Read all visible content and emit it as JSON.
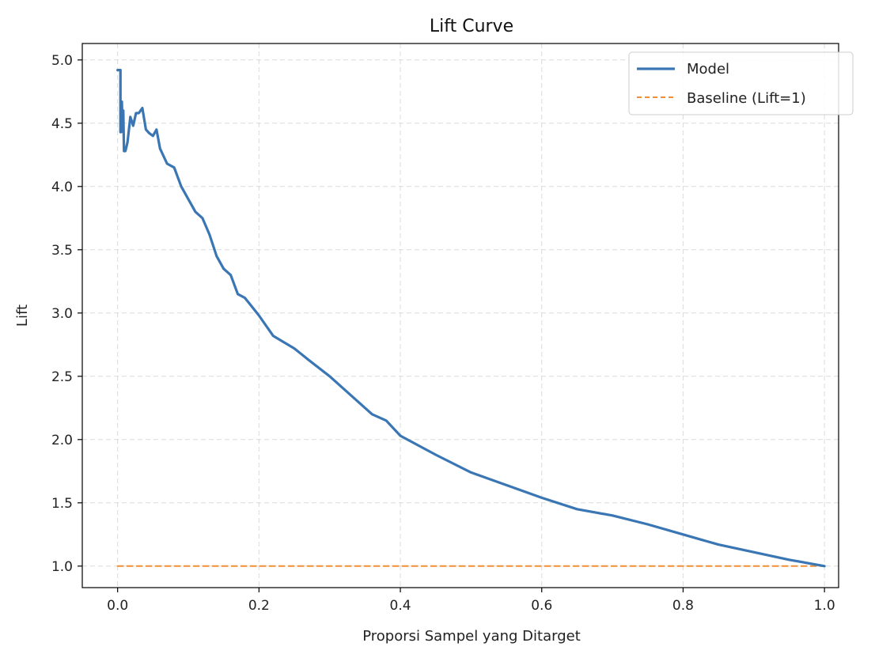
{
  "chart_data": {
    "type": "line",
    "title": "Lift Curve",
    "xlabel": "Proporsi Sampel yang Ditarget",
    "ylabel": "Lift",
    "xlim": [
      -0.05,
      1.02
    ],
    "ylim": [
      0.83,
      5.13
    ],
    "xticks": [
      0.0,
      0.2,
      0.4,
      0.6,
      0.8,
      1.0
    ],
    "xtick_labels": [
      "0.0",
      "0.2",
      "0.4",
      "0.6",
      "0.8",
      "1.0"
    ],
    "yticks": [
      1.0,
      1.5,
      2.0,
      2.5,
      3.0,
      3.5,
      4.0,
      4.5,
      5.0
    ],
    "ytick_labels": [
      "1.0",
      "1.5",
      "2.0",
      "2.5",
      "3.0",
      "3.5",
      "4.0",
      "4.5",
      "5.0"
    ],
    "grid": true,
    "legend_position": "top-right",
    "series": [
      {
        "name": "Model",
        "color": "#3a76b3",
        "style": "solid",
        "x": [
          0.0,
          0.004,
          0.004,
          0.005,
          0.006,
          0.007,
          0.008,
          0.009,
          0.011,
          0.014,
          0.018,
          0.022,
          0.026,
          0.03,
          0.035,
          0.04,
          0.045,
          0.05,
          0.055,
          0.06,
          0.07,
          0.08,
          0.09,
          0.1,
          0.11,
          0.12,
          0.13,
          0.14,
          0.15,
          0.16,
          0.17,
          0.18,
          0.19,
          0.2,
          0.22,
          0.25,
          0.27,
          0.3,
          0.33,
          0.36,
          0.38,
          0.4,
          0.45,
          0.5,
          0.55,
          0.6,
          0.65,
          0.7,
          0.75,
          0.8,
          0.85,
          0.9,
          0.95,
          1.0
        ],
        "y": [
          4.92,
          4.92,
          4.43,
          4.43,
          4.67,
          4.45,
          4.6,
          4.28,
          4.28,
          4.35,
          4.55,
          4.48,
          4.58,
          4.58,
          4.62,
          4.45,
          4.42,
          4.4,
          4.45,
          4.3,
          4.18,
          4.15,
          4.0,
          3.9,
          3.8,
          3.75,
          3.62,
          3.45,
          3.35,
          3.3,
          3.15,
          3.12,
          3.05,
          2.98,
          2.82,
          2.72,
          2.63,
          2.5,
          2.35,
          2.2,
          2.15,
          2.03,
          1.88,
          1.74,
          1.64,
          1.54,
          1.45,
          1.4,
          1.33,
          1.25,
          1.17,
          1.11,
          1.05,
          1.0
        ]
      },
      {
        "name": "Baseline (Lift=1)",
        "color": "#ef8f35",
        "style": "dashed",
        "x": [
          0.0,
          1.0
        ],
        "y": [
          1.0,
          1.0
        ]
      }
    ]
  }
}
